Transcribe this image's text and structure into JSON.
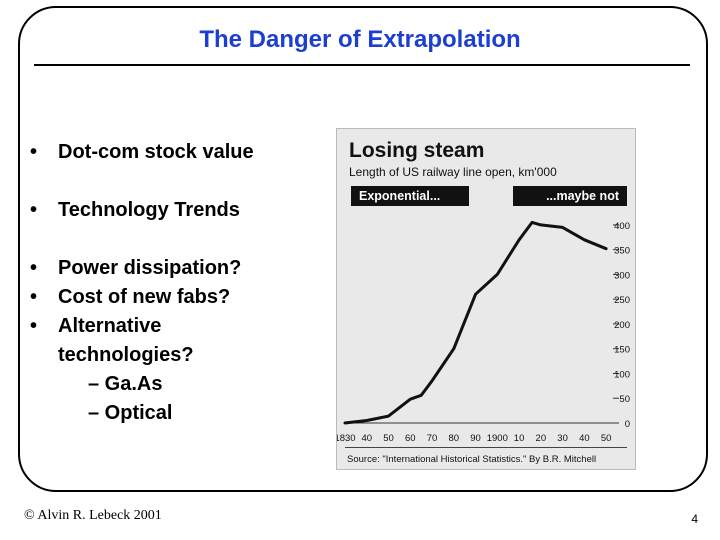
{
  "slide": {
    "title": "The Danger of Extrapolation",
    "bullets_group1": [
      "Dot-com stock value"
    ],
    "bullets_group2": [
      "Technology Trends"
    ],
    "bullets_group3": [
      "Power dissipation?",
      "Cost of new fabs?",
      "Alternative",
      "technologies?"
    ],
    "sub_bullets": [
      "– Ga.As",
      "– Optical"
    ],
    "bullet_symbol": "•",
    "footer_left": "© Alvin R. Lebeck 2001",
    "page_number": "4",
    "title_color": "#1c3fd1"
  },
  "chart_data": {
    "type": "line",
    "title": "Losing steam",
    "subtitle": "Length of US railway line open, km'000",
    "annotations": [
      "Exponential...",
      "...maybe not"
    ],
    "source": "Source: \"International Historical Statistics.\" By B.R. Mitchell",
    "x_tick_labels": [
      "1830",
      "40",
      "50",
      "60",
      "70",
      "80",
      "90",
      "1900",
      "10",
      "20",
      "30",
      "40",
      "50"
    ],
    "x": [
      1830,
      1840,
      1850,
      1860,
      1865,
      1870,
      1880,
      1890,
      1900,
      1910,
      1916,
      1920,
      1930,
      1940,
      1950
    ],
    "values": [
      0,
      5,
      14,
      48,
      56,
      85,
      150,
      260,
      300,
      370,
      405,
      400,
      395,
      370,
      352
    ],
    "xlim": [
      1830,
      1955
    ],
    "ylim": [
      0,
      420
    ],
    "y_ticks": [
      0,
      50,
      100,
      150,
      200,
      250,
      300,
      350,
      400
    ],
    "y_axis_side": "right"
  }
}
